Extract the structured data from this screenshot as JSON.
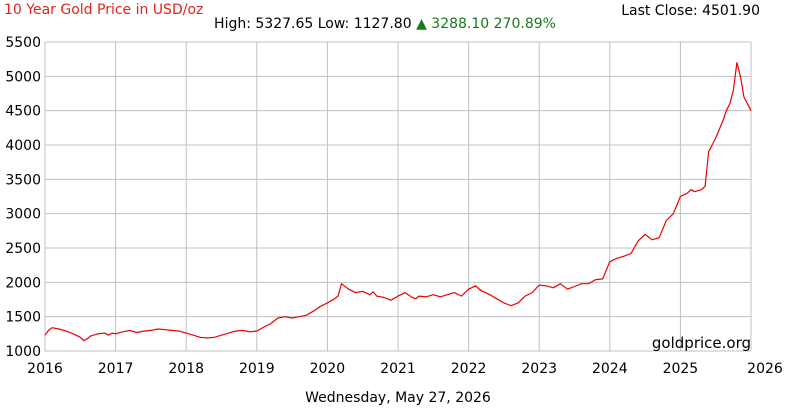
{
  "header": {
    "title": "10 Year Gold Price in USD/oz",
    "last_close": "Last Close: 4501.90",
    "high_low": "High: 5327.65 Low: 1127.80",
    "change_arrow": "▲",
    "change": "3288.10 270.89%"
  },
  "footer": {
    "date": "Wednesday, May 27, 2026"
  },
  "watermark": "goldprice.org",
  "colors": {
    "series": "#ee0000",
    "title": "#e2231a",
    "change": "#1a7a1a",
    "grid": "#c0c0c0"
  },
  "chart_data": {
    "type": "line",
    "title": "10 Year Gold Price in USD/oz",
    "xlabel": "",
    "ylabel": "",
    "xlim": [
      2016,
      2026
    ],
    "ylim": [
      1000,
      5500
    ],
    "x_ticks": [
      "2016",
      "2017",
      "2018",
      "2019",
      "2020",
      "2021",
      "2022",
      "2023",
      "2024",
      "2025",
      "2026"
    ],
    "y_ticks": [
      "1000",
      "1500",
      "2000",
      "2500",
      "3000",
      "3500",
      "4000",
      "4500",
      "5000",
      "5500"
    ],
    "grid": true,
    "legend": "none",
    "series": [
      {
        "x": [
          2016.0,
          2016.05,
          2016.1,
          2016.2,
          2016.3,
          2016.4,
          2016.5,
          2016.55,
          2016.6,
          2016.65,
          2016.75,
          2016.85,
          2016.9,
          2016.95,
          2017.0,
          2017.1,
          2017.2,
          2017.3,
          2017.4,
          2017.5,
          2017.6,
          2017.7,
          2017.8,
          2017.9,
          2018.0,
          2018.1,
          2018.2,
          2018.3,
          2018.4,
          2018.5,
          2018.6,
          2018.7,
          2018.8,
          2018.9,
          2019.0,
          2019.1,
          2019.2,
          2019.3,
          2019.4,
          2019.5,
          2019.6,
          2019.7,
          2019.8,
          2019.9,
          2020.0,
          2020.1,
          2020.15,
          2020.2,
          2020.3,
          2020.4,
          2020.5,
          2020.6,
          2020.65,
          2020.7,
          2020.8,
          2020.9,
          2021.0,
          2021.1,
          2021.2,
          2021.25,
          2021.3,
          2021.4,
          2021.5,
          2021.6,
          2021.7,
          2021.8,
          2021.9,
          2022.0,
          2022.1,
          2022.15,
          2022.2,
          2022.3,
          2022.4,
          2022.5,
          2022.6,
          2022.7,
          2022.8,
          2022.9,
          2023.0,
          2023.1,
          2023.2,
          2023.3,
          2023.4,
          2023.5,
          2023.6,
          2023.7,
          2023.8,
          2023.9,
          2024.0,
          2024.1,
          2024.2,
          2024.3,
          2024.4,
          2024.5,
          2024.6,
          2024.7,
          2024.8,
          2024.9,
          2025.0,
          2025.1,
          2025.15,
          2025.2,
          2025.3,
          2025.35,
          2025.4,
          2025.5,
          2025.6,
          2025.65,
          2025.7,
          2025.75,
          2025.8,
          2025.85,
          2025.9,
          2025.95,
          2026.0
        ],
        "y": [
          1230,
          1300,
          1340,
          1320,
          1290,
          1250,
          1200,
          1150,
          1180,
          1220,
          1250,
          1260,
          1230,
          1260,
          1250,
          1280,
          1300,
          1270,
          1290,
          1300,
          1320,
          1310,
          1300,
          1290,
          1260,
          1230,
          1200,
          1190,
          1200,
          1230,
          1260,
          1290,
          1300,
          1280,
          1290,
          1350,
          1400,
          1480,
          1500,
          1480,
          1500,
          1520,
          1580,
          1650,
          1700,
          1760,
          1800,
          1980,
          1900,
          1850,
          1870,
          1820,
          1860,
          1800,
          1780,
          1740,
          1800,
          1850,
          1780,
          1760,
          1800,
          1790,
          1820,
          1790,
          1820,
          1850,
          1800,
          1900,
          1950,
          1900,
          1870,
          1820,
          1760,
          1700,
          1660,
          1700,
          1800,
          1850,
          1960,
          1950,
          1920,
          1980,
          1900,
          1940,
          1980,
          1980,
          2040,
          2050,
          2300,
          2350,
          2380,
          2420,
          2600,
          2700,
          2620,
          2650,
          2900,
          3000,
          3250,
          3300,
          3350,
          3320,
          3350,
          3400,
          3900,
          4100,
          4350,
          4500,
          4600,
          4800,
          5200,
          5000,
          4700,
          4600,
          4500
        ]
      }
    ]
  }
}
